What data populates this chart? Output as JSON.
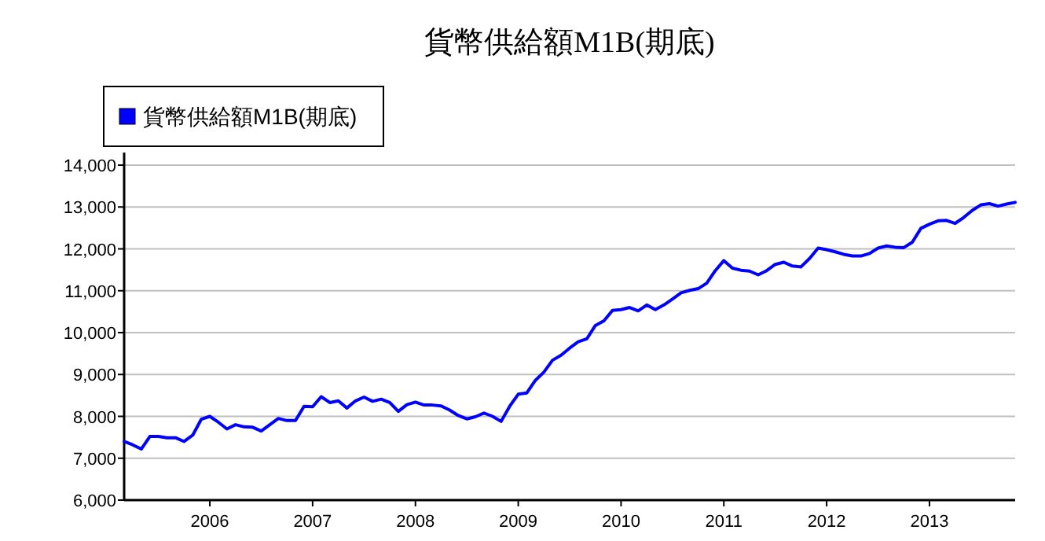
{
  "chart_data": {
    "type": "line",
    "title": "貨幣供給額M1B(期底)",
    "x": [
      "2005-03",
      "2005-04",
      "2005-05",
      "2005-06",
      "2005-07",
      "2005-08",
      "2005-09",
      "2005-10",
      "2005-11",
      "2005-12",
      "2006-01",
      "2006-02",
      "2006-03",
      "2006-04",
      "2006-05",
      "2006-06",
      "2006-07",
      "2006-08",
      "2006-09",
      "2006-10",
      "2006-11",
      "2006-12",
      "2007-01",
      "2007-02",
      "2007-03",
      "2007-04",
      "2007-05",
      "2007-06",
      "2007-07",
      "2007-08",
      "2007-09",
      "2007-10",
      "2007-11",
      "2007-12",
      "2008-01",
      "2008-02",
      "2008-03",
      "2008-04",
      "2008-05",
      "2008-06",
      "2008-07",
      "2008-08",
      "2008-09",
      "2008-10",
      "2008-11",
      "2008-12",
      "2009-01",
      "2009-02",
      "2009-03",
      "2009-04",
      "2009-05",
      "2009-06",
      "2009-07",
      "2009-08",
      "2009-09",
      "2009-10",
      "2009-11",
      "2009-12",
      "2010-01",
      "2010-02",
      "2010-03",
      "2010-04",
      "2010-05",
      "2010-06",
      "2010-07",
      "2010-08",
      "2010-09",
      "2010-10",
      "2010-11",
      "2010-12",
      "2011-01",
      "2011-02",
      "2011-03",
      "2011-04",
      "2011-05",
      "2011-06",
      "2011-07",
      "2011-08",
      "2011-09",
      "2011-10",
      "2011-11",
      "2011-12",
      "2012-01",
      "2012-02",
      "2012-03",
      "2012-04",
      "2012-05",
      "2012-06",
      "2012-07",
      "2012-08",
      "2012-09",
      "2012-10",
      "2012-11",
      "2012-12",
      "2013-01",
      "2013-02",
      "2013-03",
      "2013-04",
      "2013-05",
      "2013-06",
      "2013-07",
      "2013-08",
      "2013-09",
      "2013-10",
      "2013-11"
    ],
    "series": [
      {
        "name": "貨幣供給額M1B(期底)",
        "color": "#0000ff",
        "values": [
          7400,
          7320,
          7220,
          7520,
          7520,
          7490,
          7490,
          7400,
          7550,
          7930,
          8000,
          7860,
          7700,
          7800,
          7750,
          7740,
          7650,
          7800,
          7950,
          7900,
          7900,
          8240,
          8230,
          8470,
          8330,
          8370,
          8200,
          8370,
          8460,
          8360,
          8410,
          8330,
          8120,
          8280,
          8340,
          8270,
          8270,
          8250,
          8150,
          8020,
          7940,
          7990,
          8080,
          8000,
          7880,
          8240,
          8530,
          8560,
          8860,
          9060,
          9340,
          9460,
          9630,
          9780,
          9850,
          10170,
          10280,
          10530,
          10550,
          10600,
          10520,
          10660,
          10550,
          10660,
          10800,
          10950,
          11010,
          11050,
          11180,
          11480,
          11720,
          11540,
          11490,
          11470,
          11380,
          11480,
          11630,
          11680,
          11590,
          11570,
          11770,
          12020,
          11980,
          11930,
          11870,
          11830,
          11830,
          11890,
          12020,
          12070,
          12040,
          12030,
          12160,
          12490,
          12590,
          12670,
          12680,
          12610,
          12750,
          12920,
          13050,
          13080,
          13020,
          13070,
          13110
        ]
      }
    ],
    "xlim": [
      "2005-03",
      "2013-11"
    ],
    "xticks": [
      "2006",
      "2007",
      "2008",
      "2009",
      "2010",
      "2011",
      "2012",
      "2013"
    ],
    "ylim": [
      6000,
      14000
    ],
    "yticks": [
      {
        "value": 6000,
        "label": "6,000"
      },
      {
        "value": 7000,
        "label": "7,000"
      },
      {
        "value": 8000,
        "label": "8,000"
      },
      {
        "value": 9000,
        "label": "9,000"
      },
      {
        "value": 10000,
        "label": "10,000"
      },
      {
        "value": 11000,
        "label": "11,000"
      },
      {
        "value": 12000,
        "label": "12,000"
      },
      {
        "value": 13000,
        "label": "13,000"
      },
      {
        "value": 14000,
        "label": "14,000"
      }
    ],
    "grid": "y",
    "legend": "top left",
    "marker": "none",
    "line_style": "solid"
  }
}
